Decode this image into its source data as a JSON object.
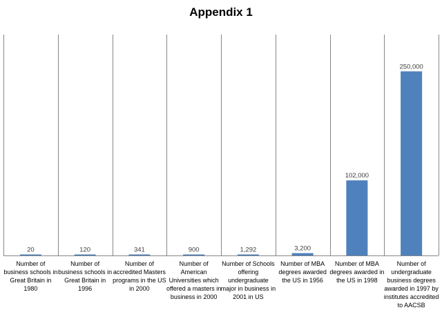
{
  "chart_data": {
    "type": "bar",
    "title": "Appendix 1",
    "xlabel": "",
    "ylabel": "",
    "ylim": [
      0,
      300000
    ],
    "grid": "vertical category dividers",
    "categories": [
      "Number of business schools in Great Britain in 1980",
      "Number of business schools in Great Britain in 1996",
      "Number of accredited Masters programs in the US in 2000",
      "Number of American Universities which offered a masters in business in 2000",
      "Number of Schools offering undergraduate major in business in 2001 in US",
      "Number of MBA degrees awarded the US in 1956",
      "Number of MBA degrees awarded in the US in 1998",
      "Number of undergraduate business degrees awarded in 1997 by institutes accredited to AACSB"
    ],
    "values": [
      20,
      120,
      341,
      900,
      1292,
      3200,
      102000,
      250000
    ],
    "data_labels": [
      "20",
      "120",
      "341",
      "900",
      "1,292",
      "3,200",
      "102,000",
      "250,000"
    ],
    "bar_color": "#4f81bd",
    "label_color": "#404040"
  }
}
